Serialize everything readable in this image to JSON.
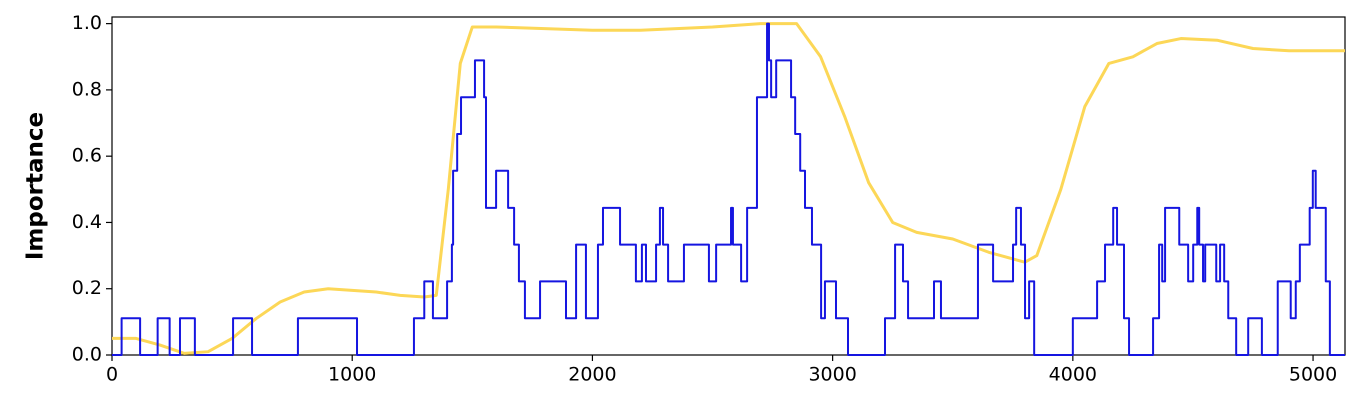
{
  "chart_data": {
    "type": "line",
    "ylabel": "Importance",
    "xlim": [
      0,
      5133
    ],
    "ylim": [
      0,
      1.02
    ],
    "xticks": [
      0,
      1000,
      2000,
      3000,
      4000,
      5000
    ],
    "yticks": [
      {
        "value": 0,
        "label": "0.0"
      },
      {
        "value": 0.2,
        "label": "0.2"
      },
      {
        "value": 0.4,
        "label": "0.4"
      },
      {
        "value": 0.6,
        "label": "0.6"
      },
      {
        "value": 0.8,
        "label": "0.8"
      },
      {
        "value": 1.0,
        "label": "1.0"
      }
    ],
    "series": [
      {
        "color": "#fcd757",
        "drawstyle": "smooth",
        "x": [
          0,
          100,
          200,
          300,
          400,
          500,
          600,
          700,
          800,
          900,
          1000,
          1100,
          1200,
          1300,
          1350,
          1400,
          1450,
          1500,
          1600,
          2000,
          2200,
          2500,
          2700,
          2850,
          2950,
          3050,
          3150,
          3250,
          3350,
          3500,
          3650,
          3800,
          3850,
          3950,
          4050,
          4150,
          4250,
          4350,
          4450,
          4600,
          4750,
          4900,
          5133
        ],
        "values": [
          0.05,
          0.05,
          0.03,
          0.005,
          0.01,
          0.05,
          0.11,
          0.16,
          0.19,
          0.2,
          0.195,
          0.19,
          0.18,
          0.175,
          0.18,
          0.5,
          0.88,
          0.99,
          0.99,
          0.98,
          0.98,
          0.99,
          1.0,
          1.0,
          0.9,
          0.72,
          0.52,
          0.4,
          0.37,
          0.35,
          0.31,
          0.28,
          0.3,
          0.5,
          0.75,
          0.88,
          0.9,
          0.94,
          0.955,
          0.95,
          0.925,
          0.918,
          0.918
        ]
      },
      {
        "color": "#1515e0",
        "drawstyle": "steps-post",
        "x": [
          0,
          40,
          117,
          190,
          240,
          283,
          345,
          504,
          583,
          774,
          1020,
          1257,
          1300,
          1336,
          1395,
          1415,
          1420,
          1437,
          1453,
          1511,
          1549,
          1557,
          1599,
          1649,
          1674,
          1694,
          1719,
          1782,
          1890,
          1932,
          1973,
          2023,
          2044,
          2115,
          2181,
          2206,
          2223,
          2265,
          2281,
          2294,
          2315,
          2381,
          2485,
          2515,
          2577,
          2585,
          2619,
          2644,
          2685,
          2727,
          2735,
          2744,
          2765,
          2827,
          2844,
          2865,
          2885,
          2914,
          2952,
          2968,
          3014,
          3064,
          3218,
          3260,
          3293,
          3314,
          3422,
          3451,
          3605,
          3668,
          3751,
          3764,
          3784,
          3801,
          3818,
          3839,
          4000,
          4101,
          4134,
          4168,
          4184,
          4213,
          4234,
          4334,
          4359,
          4372,
          4384,
          4443,
          4480,
          4501,
          4518,
          4526,
          4542,
          4551,
          4597,
          4613,
          4630,
          4647,
          4680,
          4730,
          4787,
          4853,
          4907,
          4928,
          4945,
          4986,
          4999,
          5011,
          5053,
          5070,
          5133
        ],
        "values": [
          0,
          0.111,
          0,
          0.111,
          0,
          0.111,
          0,
          0.111,
          0,
          0.111,
          0,
          0.111,
          0.222,
          0.111,
          0.222,
          0.333,
          0.556,
          0.667,
          0.778,
          0.889,
          0.778,
          0.444,
          0.556,
          0.444,
          0.333,
          0.222,
          0.111,
          0.222,
          0.111,
          0.333,
          0.111,
          0.333,
          0.444,
          0.333,
          0.222,
          0.333,
          0.222,
          0.333,
          0.444,
          0.333,
          0.222,
          0.333,
          0.222,
          0.333,
          0.444,
          0.333,
          0.222,
          0.444,
          0.778,
          1.0,
          0.889,
          0.778,
          0.889,
          0.778,
          0.667,
          0.556,
          0.444,
          0.333,
          0.111,
          0.222,
          0.111,
          0,
          0.111,
          0.333,
          0.222,
          0.111,
          0.222,
          0.111,
          0.333,
          0.222,
          0.333,
          0.444,
          0.333,
          0.111,
          0.222,
          0,
          0.111,
          0.222,
          0.333,
          0.444,
          0.333,
          0.111,
          0,
          0.111,
          0.333,
          0.222,
          0.444,
          0.333,
          0.222,
          0.333,
          0.444,
          0.333,
          0.222,
          0.333,
          0.222,
          0.333,
          0.222,
          0.111,
          0,
          0.111,
          0,
          0.222,
          0.111,
          0.222,
          0.333,
          0.444,
          0.556,
          0.444,
          0.222,
          0,
          0
        ]
      }
    ]
  }
}
